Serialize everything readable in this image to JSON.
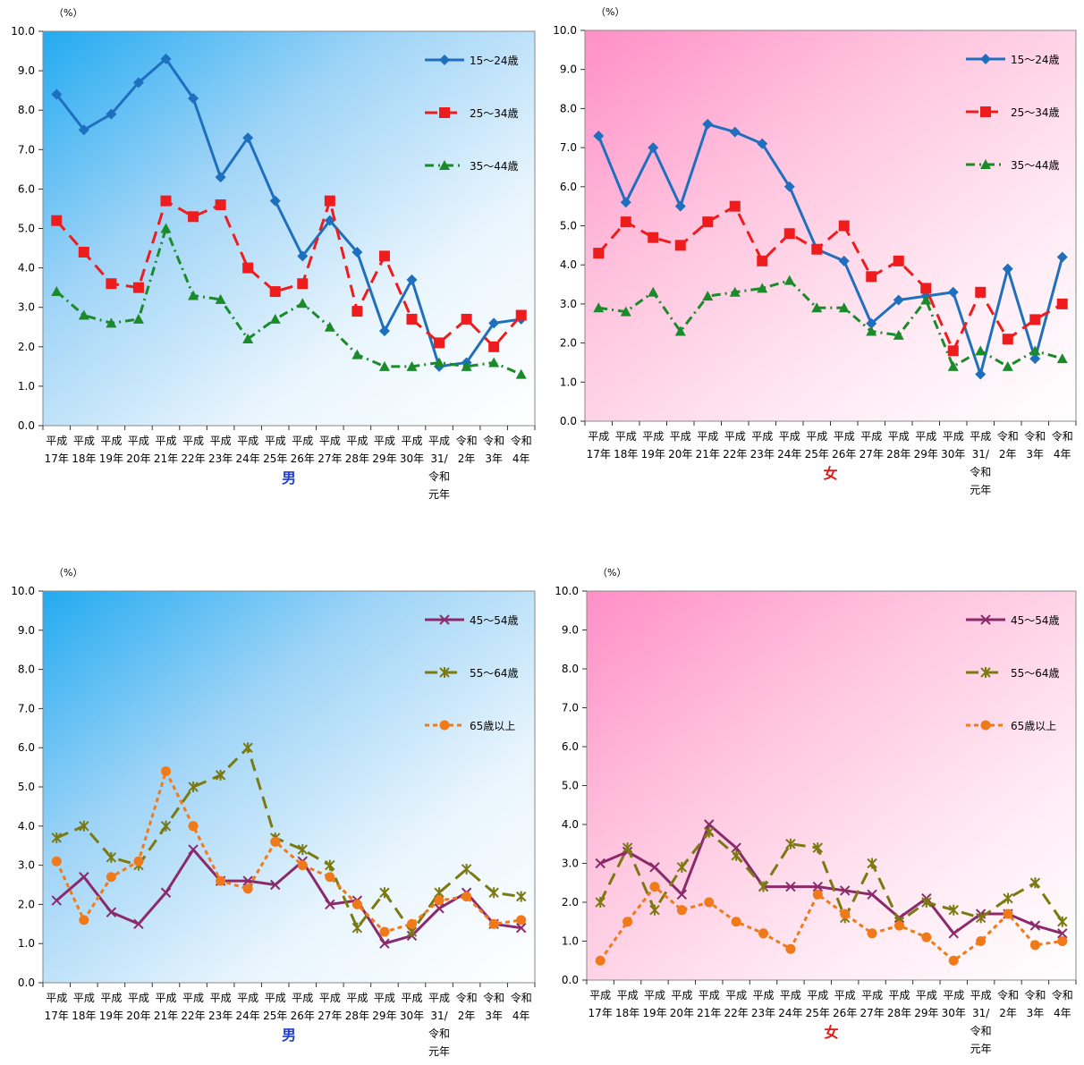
{
  "chart_data": [
    {
      "type": "line",
      "title": "男",
      "title_color": "#1f3fd0",
      "yunit": "（%）",
      "ylim": [
        0,
        10
      ],
      "yticks": [
        "0.0",
        "1.0",
        "2.0",
        "3.0",
        "4.0",
        "5.0",
        "6.0",
        "7.0",
        "8.0",
        "9.0",
        "10.0"
      ],
      "categories": [
        [
          "平成",
          "17年"
        ],
        [
          "平成",
          "18年"
        ],
        [
          "平成",
          "19年"
        ],
        [
          "平成",
          "20年"
        ],
        [
          "平成",
          "21年"
        ],
        [
          "平成",
          "22年"
        ],
        [
          "平成",
          "23年"
        ],
        [
          "平成",
          "24年"
        ],
        [
          "平成",
          "25年"
        ],
        [
          "平成",
          "26年"
        ],
        [
          "平成",
          "27年"
        ],
        [
          "平成",
          "28年"
        ],
        [
          "平成",
          "29年"
        ],
        [
          "平成",
          "30年"
        ],
        [
          "平成",
          "31/",
          "令和",
          "元年"
        ],
        [
          "令和",
          "2年"
        ],
        [
          "令和",
          "3年"
        ],
        [
          "令和",
          "4年"
        ]
      ],
      "background": "blue",
      "legend_position": "top-right",
      "series": [
        {
          "name": "15～24歳",
          "color": "#1f6fbf",
          "dash": "",
          "marker": "diamond",
          "values": [
            8.4,
            7.5,
            7.9,
            8.7,
            9.3,
            8.3,
            6.3,
            7.3,
            5.7,
            4.3,
            5.2,
            4.4,
            2.4,
            3.7,
            1.5,
            1.6,
            2.6,
            2.7
          ]
        },
        {
          "name": "25～34歳",
          "color": "#ee1c1c",
          "dash": "14 8",
          "marker": "square",
          "values": [
            5.2,
            4.4,
            3.6,
            3.5,
            5.7,
            5.3,
            5.6,
            4.0,
            3.4,
            3.6,
            5.7,
            2.9,
            4.3,
            2.7,
            2.1,
            2.7,
            2.0,
            2.8
          ]
        },
        {
          "name": "35～44歳",
          "color": "#1a8a2a",
          "dash": "10 5 2 5",
          "marker": "triangle",
          "values": [
            3.4,
            2.8,
            2.6,
            2.7,
            5.0,
            3.3,
            3.2,
            2.2,
            2.7,
            3.1,
            2.5,
            1.8,
            1.5,
            1.5,
            1.6,
            1.5,
            1.6,
            1.3
          ]
        }
      ]
    },
    {
      "type": "line",
      "title": "女",
      "title_color": "#e01a1a",
      "yunit": "（%）",
      "ylim": [
        0,
        10
      ],
      "yticks": [
        "0.0",
        "1.0",
        "2.0",
        "3.0",
        "4.0",
        "5.0",
        "6.0",
        "7.0",
        "8.0",
        "9.0",
        "10.0"
      ],
      "categories": [
        [
          "平成",
          "17年"
        ],
        [
          "平成",
          "18年"
        ],
        [
          "平成",
          "19年"
        ],
        [
          "平成",
          "20年"
        ],
        [
          "平成",
          "21年"
        ],
        [
          "平成",
          "22年"
        ],
        [
          "平成",
          "23年"
        ],
        [
          "平成",
          "24年"
        ],
        [
          "平成",
          "25年"
        ],
        [
          "平成",
          "26年"
        ],
        [
          "平成",
          "27年"
        ],
        [
          "平成",
          "28年"
        ],
        [
          "平成",
          "29年"
        ],
        [
          "平成",
          "30年"
        ],
        [
          "平成",
          "31/",
          "令和",
          "元年"
        ],
        [
          "令和",
          "2年"
        ],
        [
          "令和",
          "3年"
        ],
        [
          "令和",
          "4年"
        ]
      ],
      "background": "pink",
      "legend_position": "top-right",
      "series": [
        {
          "name": "15～24歳",
          "color": "#1f6fbf",
          "dash": "",
          "marker": "diamond",
          "values": [
            7.3,
            5.6,
            7.0,
            5.5,
            7.6,
            7.4,
            7.1,
            6.0,
            4.4,
            4.1,
            2.5,
            3.1,
            3.2,
            3.3,
            1.2,
            3.9,
            1.6,
            4.2
          ]
        },
        {
          "name": "25～34歳",
          "color": "#ee1c1c",
          "dash": "14 8",
          "marker": "square",
          "values": [
            4.3,
            5.1,
            4.7,
            4.5,
            5.1,
            5.5,
            4.1,
            4.8,
            4.4,
            5.0,
            3.7,
            4.1,
            3.4,
            1.8,
            3.3,
            2.1,
            2.6,
            3.0
          ]
        },
        {
          "name": "35～44歳",
          "color": "#1a8a2a",
          "dash": "10 5 2 5",
          "marker": "triangle",
          "values": [
            2.9,
            2.8,
            3.3,
            2.3,
            3.2,
            3.3,
            3.4,
            3.6,
            2.9,
            2.9,
            2.3,
            2.2,
            3.1,
            1.4,
            1.8,
            1.4,
            1.8,
            1.6
          ]
        }
      ]
    },
    {
      "type": "line",
      "title": "男",
      "title_color": "#1f3fd0",
      "yunit": "（%）",
      "ylim": [
        0,
        10
      ],
      "yticks": [
        "0.0",
        "1.0",
        "2.0",
        "3.0",
        "4.0",
        "5.0",
        "6.0",
        "7.0",
        "8.0",
        "9.0",
        "10.0"
      ],
      "categories": [
        [
          "平成",
          "17年"
        ],
        [
          "平成",
          "18年"
        ],
        [
          "平成",
          "19年"
        ],
        [
          "平成",
          "20年"
        ],
        [
          "平成",
          "21年"
        ],
        [
          "平成",
          "22年"
        ],
        [
          "平成",
          "23年"
        ],
        [
          "平成",
          "24年"
        ],
        [
          "平成",
          "25年"
        ],
        [
          "平成",
          "26年"
        ],
        [
          "平成",
          "27年"
        ],
        [
          "平成",
          "28年"
        ],
        [
          "平成",
          "29年"
        ],
        [
          "平成",
          "30年"
        ],
        [
          "平成",
          "31/",
          "令和",
          "元年"
        ],
        [
          "令和",
          "2年"
        ],
        [
          "令和",
          "3年"
        ],
        [
          "令和",
          "4年"
        ]
      ],
      "background": "blue",
      "legend_position": "top-right",
      "series": [
        {
          "name": "45～54歳",
          "color": "#8b2a6b",
          "dash": "",
          "marker": "x",
          "values": [
            2.1,
            2.7,
            1.8,
            1.5,
            2.3,
            3.4,
            2.6,
            2.6,
            2.5,
            3.1,
            2.0,
            2.1,
            1.0,
            1.2,
            1.9,
            2.3,
            1.5,
            1.4
          ]
        },
        {
          "name": "55～64歳",
          "color": "#7a7a10",
          "dash": "14 8",
          "marker": "star",
          "values": [
            3.7,
            4.0,
            3.2,
            3.0,
            4.0,
            5.0,
            5.3,
            6.0,
            3.7,
            3.4,
            3.0,
            1.4,
            2.3,
            1.3,
            2.3,
            2.9,
            2.3,
            2.2
          ]
        },
        {
          "name": "65歳以上",
          "color": "#f07a1a",
          "dash": "5 4",
          "marker": "circle",
          "values": [
            3.1,
            1.6,
            2.7,
            3.1,
            5.4,
            4.0,
            2.6,
            2.4,
            3.6,
            3.0,
            2.7,
            2.0,
            1.3,
            1.5,
            2.1,
            2.2,
            1.5,
            1.6
          ]
        }
      ]
    },
    {
      "type": "line",
      "title": "女",
      "title_color": "#e01a1a",
      "yunit": "（%）",
      "ylim": [
        0,
        10
      ],
      "yticks": [
        "0.0",
        "1.0",
        "2.0",
        "3.0",
        "4.0",
        "5.0",
        "6.0",
        "7.0",
        "8.0",
        "9.0",
        "10.0"
      ],
      "categories": [
        [
          "平成",
          "17年"
        ],
        [
          "平成",
          "18年"
        ],
        [
          "平成",
          "19年"
        ],
        [
          "平成",
          "20年"
        ],
        [
          "平成",
          "21年"
        ],
        [
          "平成",
          "22年"
        ],
        [
          "平成",
          "23年"
        ],
        [
          "平成",
          "24年"
        ],
        [
          "平成",
          "25年"
        ],
        [
          "平成",
          "26年"
        ],
        [
          "平成",
          "27年"
        ],
        [
          "平成",
          "28年"
        ],
        [
          "平成",
          "29年"
        ],
        [
          "平成",
          "30年"
        ],
        [
          "平成",
          "31/",
          "令和",
          "元年"
        ],
        [
          "令和",
          "2年"
        ],
        [
          "令和",
          "3年"
        ],
        [
          "令和",
          "4年"
        ]
      ],
      "background": "pink",
      "legend_position": "top-right",
      "series": [
        {
          "name": "45～54歳",
          "color": "#8b2a6b",
          "dash": "",
          "marker": "x",
          "values": [
            3.0,
            3.3,
            2.9,
            2.2,
            4.0,
            3.4,
            2.4,
            2.4,
            2.4,
            2.3,
            2.2,
            1.6,
            2.1,
            1.2,
            1.7,
            1.7,
            1.4,
            1.2
          ]
        },
        {
          "name": "55～64歳",
          "color": "#7a7a10",
          "dash": "14 8",
          "marker": "star",
          "values": [
            2.0,
            3.4,
            1.8,
            2.9,
            3.8,
            3.2,
            2.4,
            3.5,
            3.4,
            1.6,
            3.0,
            1.5,
            2.0,
            1.8,
            1.6,
            2.1,
            2.5,
            1.5
          ]
        },
        {
          "name": "65歳以上",
          "color": "#f07a1a",
          "dash": "5 4",
          "marker": "circle",
          "values": [
            0.5,
            1.5,
            2.4,
            1.8,
            2.0,
            1.5,
            1.2,
            0.8,
            2.2,
            1.7,
            1.2,
            1.4,
            1.1,
            0.5,
            1.0,
            1.7,
            0.9,
            1.0
          ]
        }
      ]
    }
  ]
}
